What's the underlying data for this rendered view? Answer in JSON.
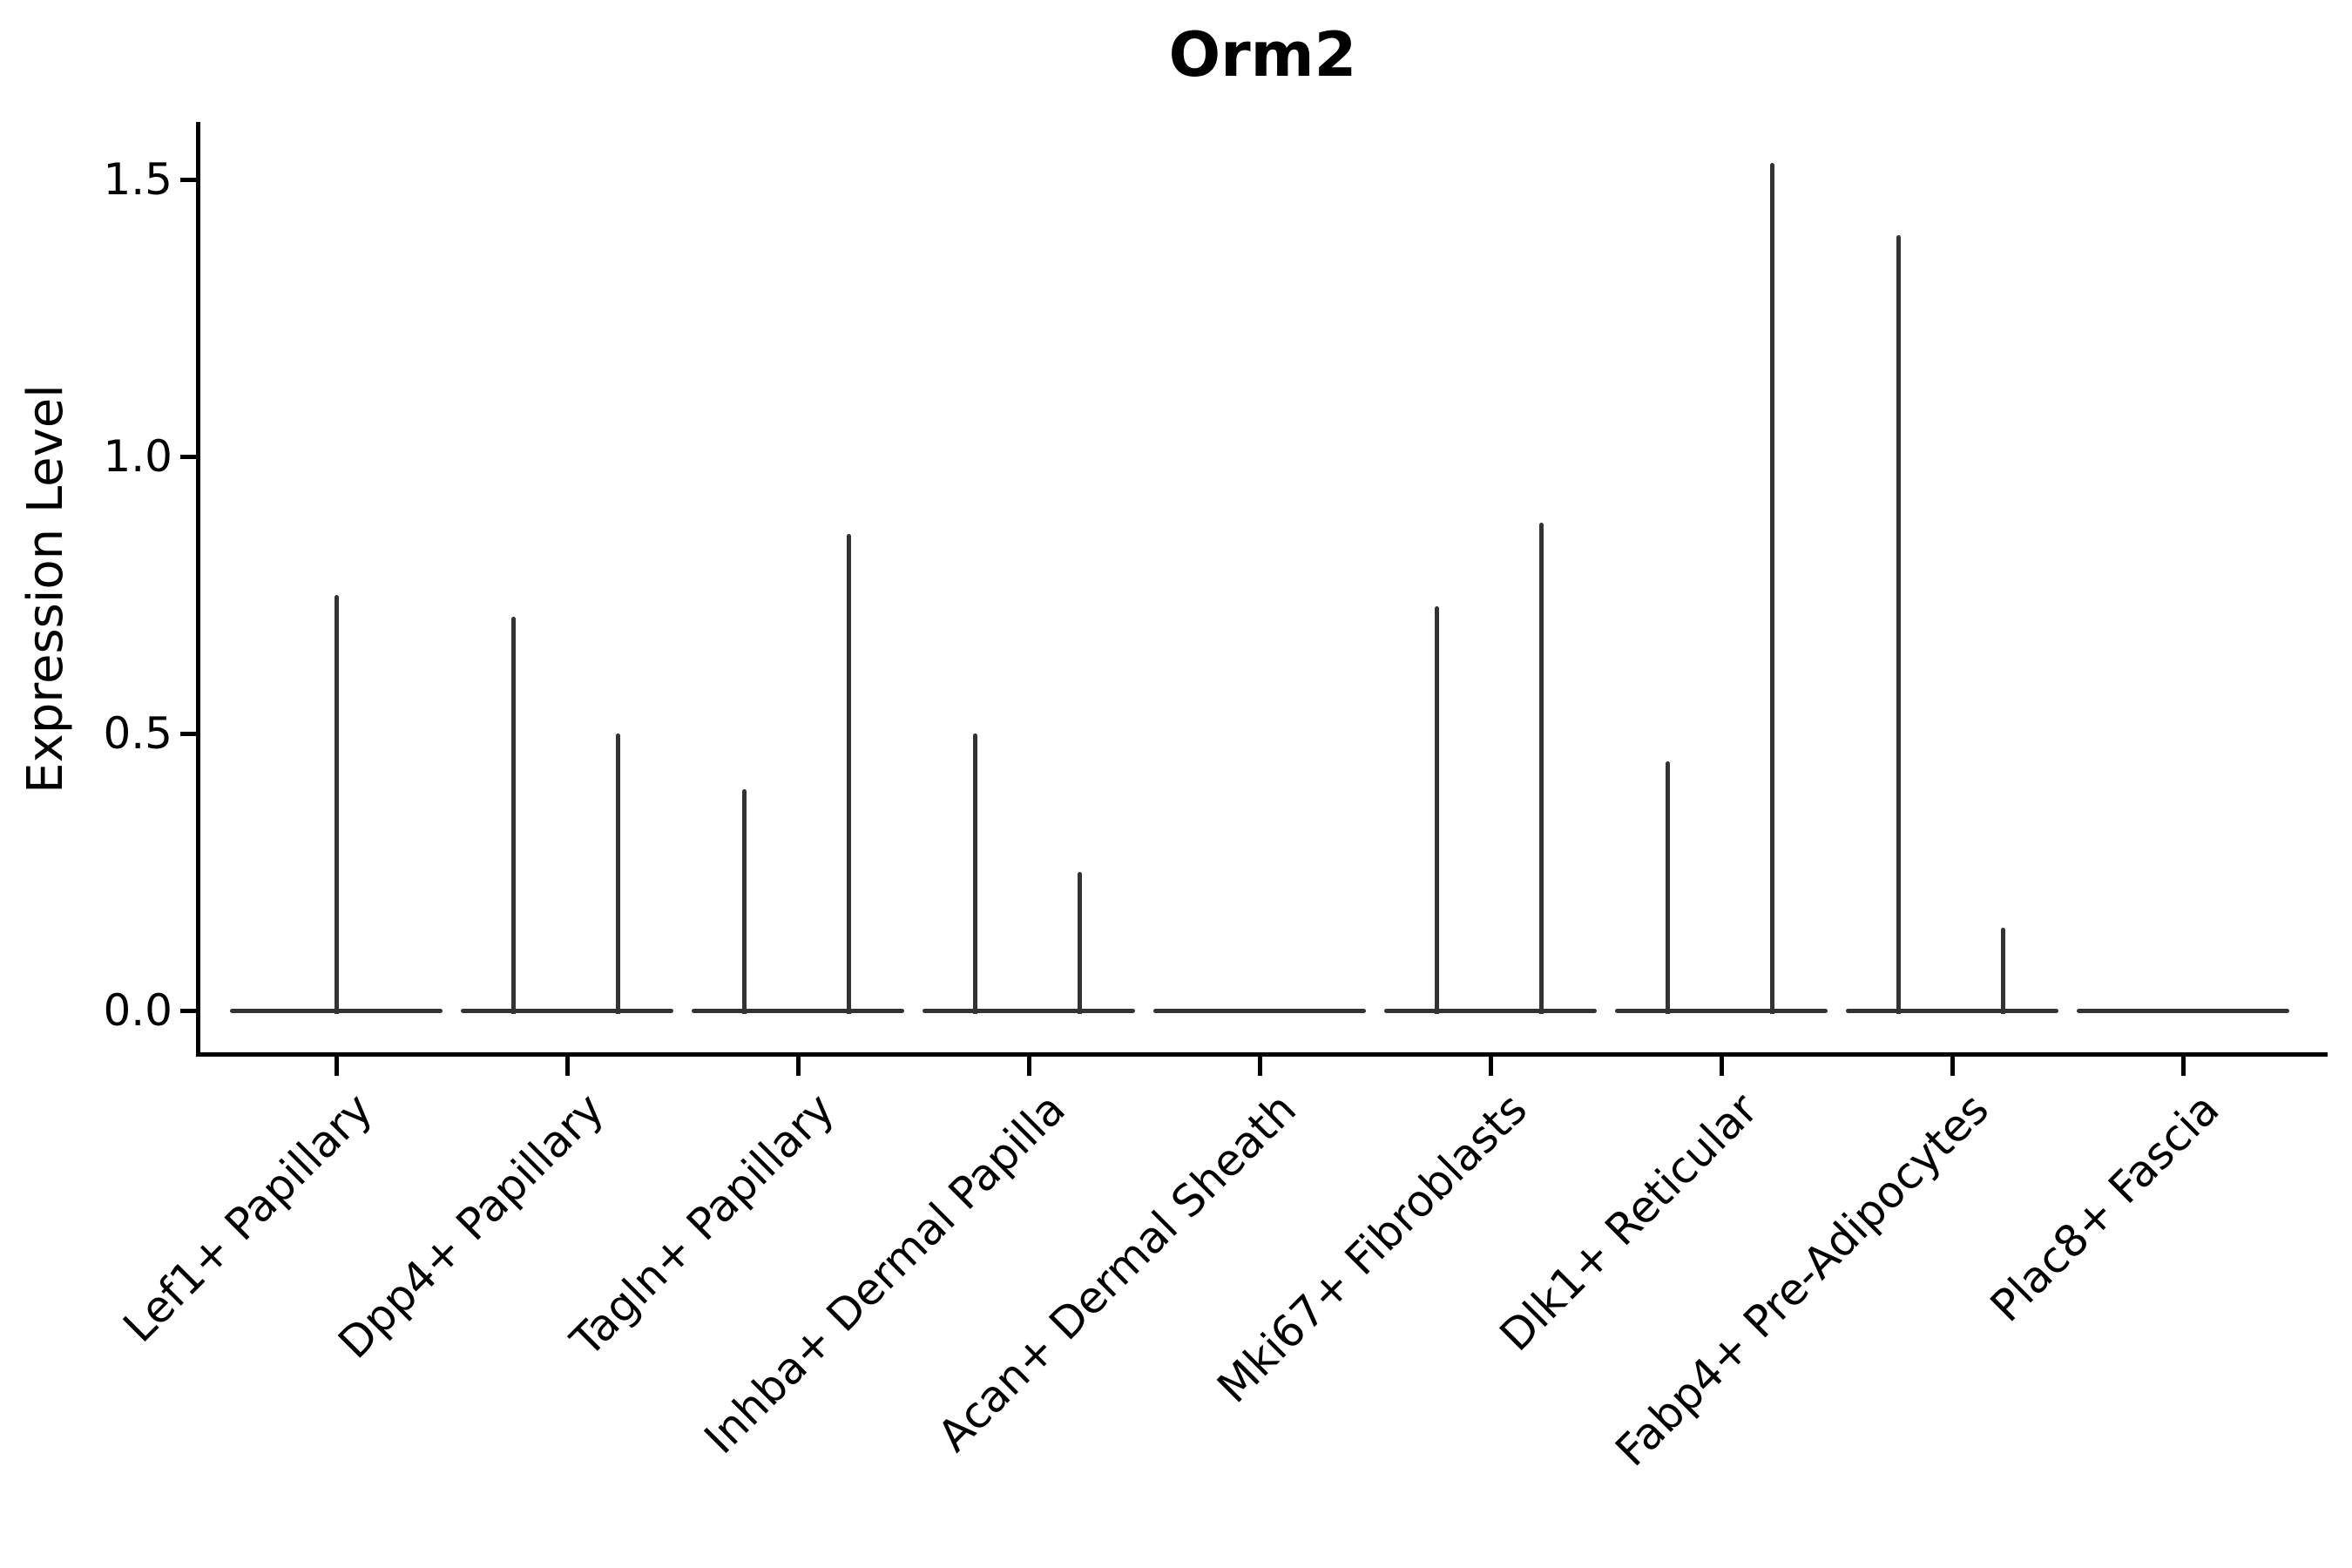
{
  "figure": {
    "title": "Orm2",
    "ylabel": "Expression Level"
  },
  "chart_data": {
    "type": "violin",
    "title": "Orm2",
    "xlabel": "",
    "ylabel": "Expression Level",
    "ylim": [
      -0.08,
      1.6
    ],
    "yticks": [
      0.0,
      0.5,
      1.0,
      1.5
    ],
    "ytick_labels": [
      "0.0",
      "0.5",
      "1.0",
      "1.5"
    ],
    "grid": false,
    "legend": "none",
    "background_color": "#ffffff",
    "violin_color": "#333333",
    "axis_color": "#000000",
    "categories": [
      "Lef1+ Papillary",
      "Dpp4+ Papillary",
      "Tagln+ Papillary",
      "Inhba+ Dermal Papilla",
      "Acan+ Dermal Sheath",
      "Mki67+ Fibroblasts",
      "Dlk1+ Reticular",
      "Fabp4+ Pre-Adipocytes",
      "Plac8+ Fascia"
    ],
    "violins": [
      {
        "category": "Lef1+ Papillary",
        "spikes": [
          {
            "slot": "center",
            "max": 0.75
          }
        ]
      },
      {
        "category": "Dpp4+ Papillary",
        "spikes": [
          {
            "slot": "left",
            "max": 0.71
          },
          {
            "slot": "right",
            "max": 0.5
          }
        ]
      },
      {
        "category": "Tagln+ Papillary",
        "spikes": [
          {
            "slot": "left",
            "max": 0.4
          },
          {
            "slot": "right",
            "max": 0.86
          }
        ]
      },
      {
        "category": "Inhba+ Dermal Papilla",
        "spikes": [
          {
            "slot": "left",
            "max": 0.5
          },
          {
            "slot": "right",
            "max": 0.25
          }
        ]
      },
      {
        "category": "Acan+ Dermal Sheath",
        "spikes": []
      },
      {
        "category": "Mki67+ Fibroblasts",
        "spikes": [
          {
            "slot": "left",
            "max": 0.73
          },
          {
            "slot": "right",
            "max": 0.88
          }
        ]
      },
      {
        "category": "Dlk1+ Reticular",
        "spikes": [
          {
            "slot": "left",
            "max": 0.45
          },
          {
            "slot": "right",
            "max": 1.53
          }
        ]
      },
      {
        "category": "Fabp4+ Pre-Adipocytes",
        "spikes": [
          {
            "slot": "left",
            "max": 1.4
          },
          {
            "slot": "right",
            "max": 0.15
          }
        ]
      },
      {
        "category": "Plac8+ Fascia",
        "spikes": []
      }
    ]
  }
}
